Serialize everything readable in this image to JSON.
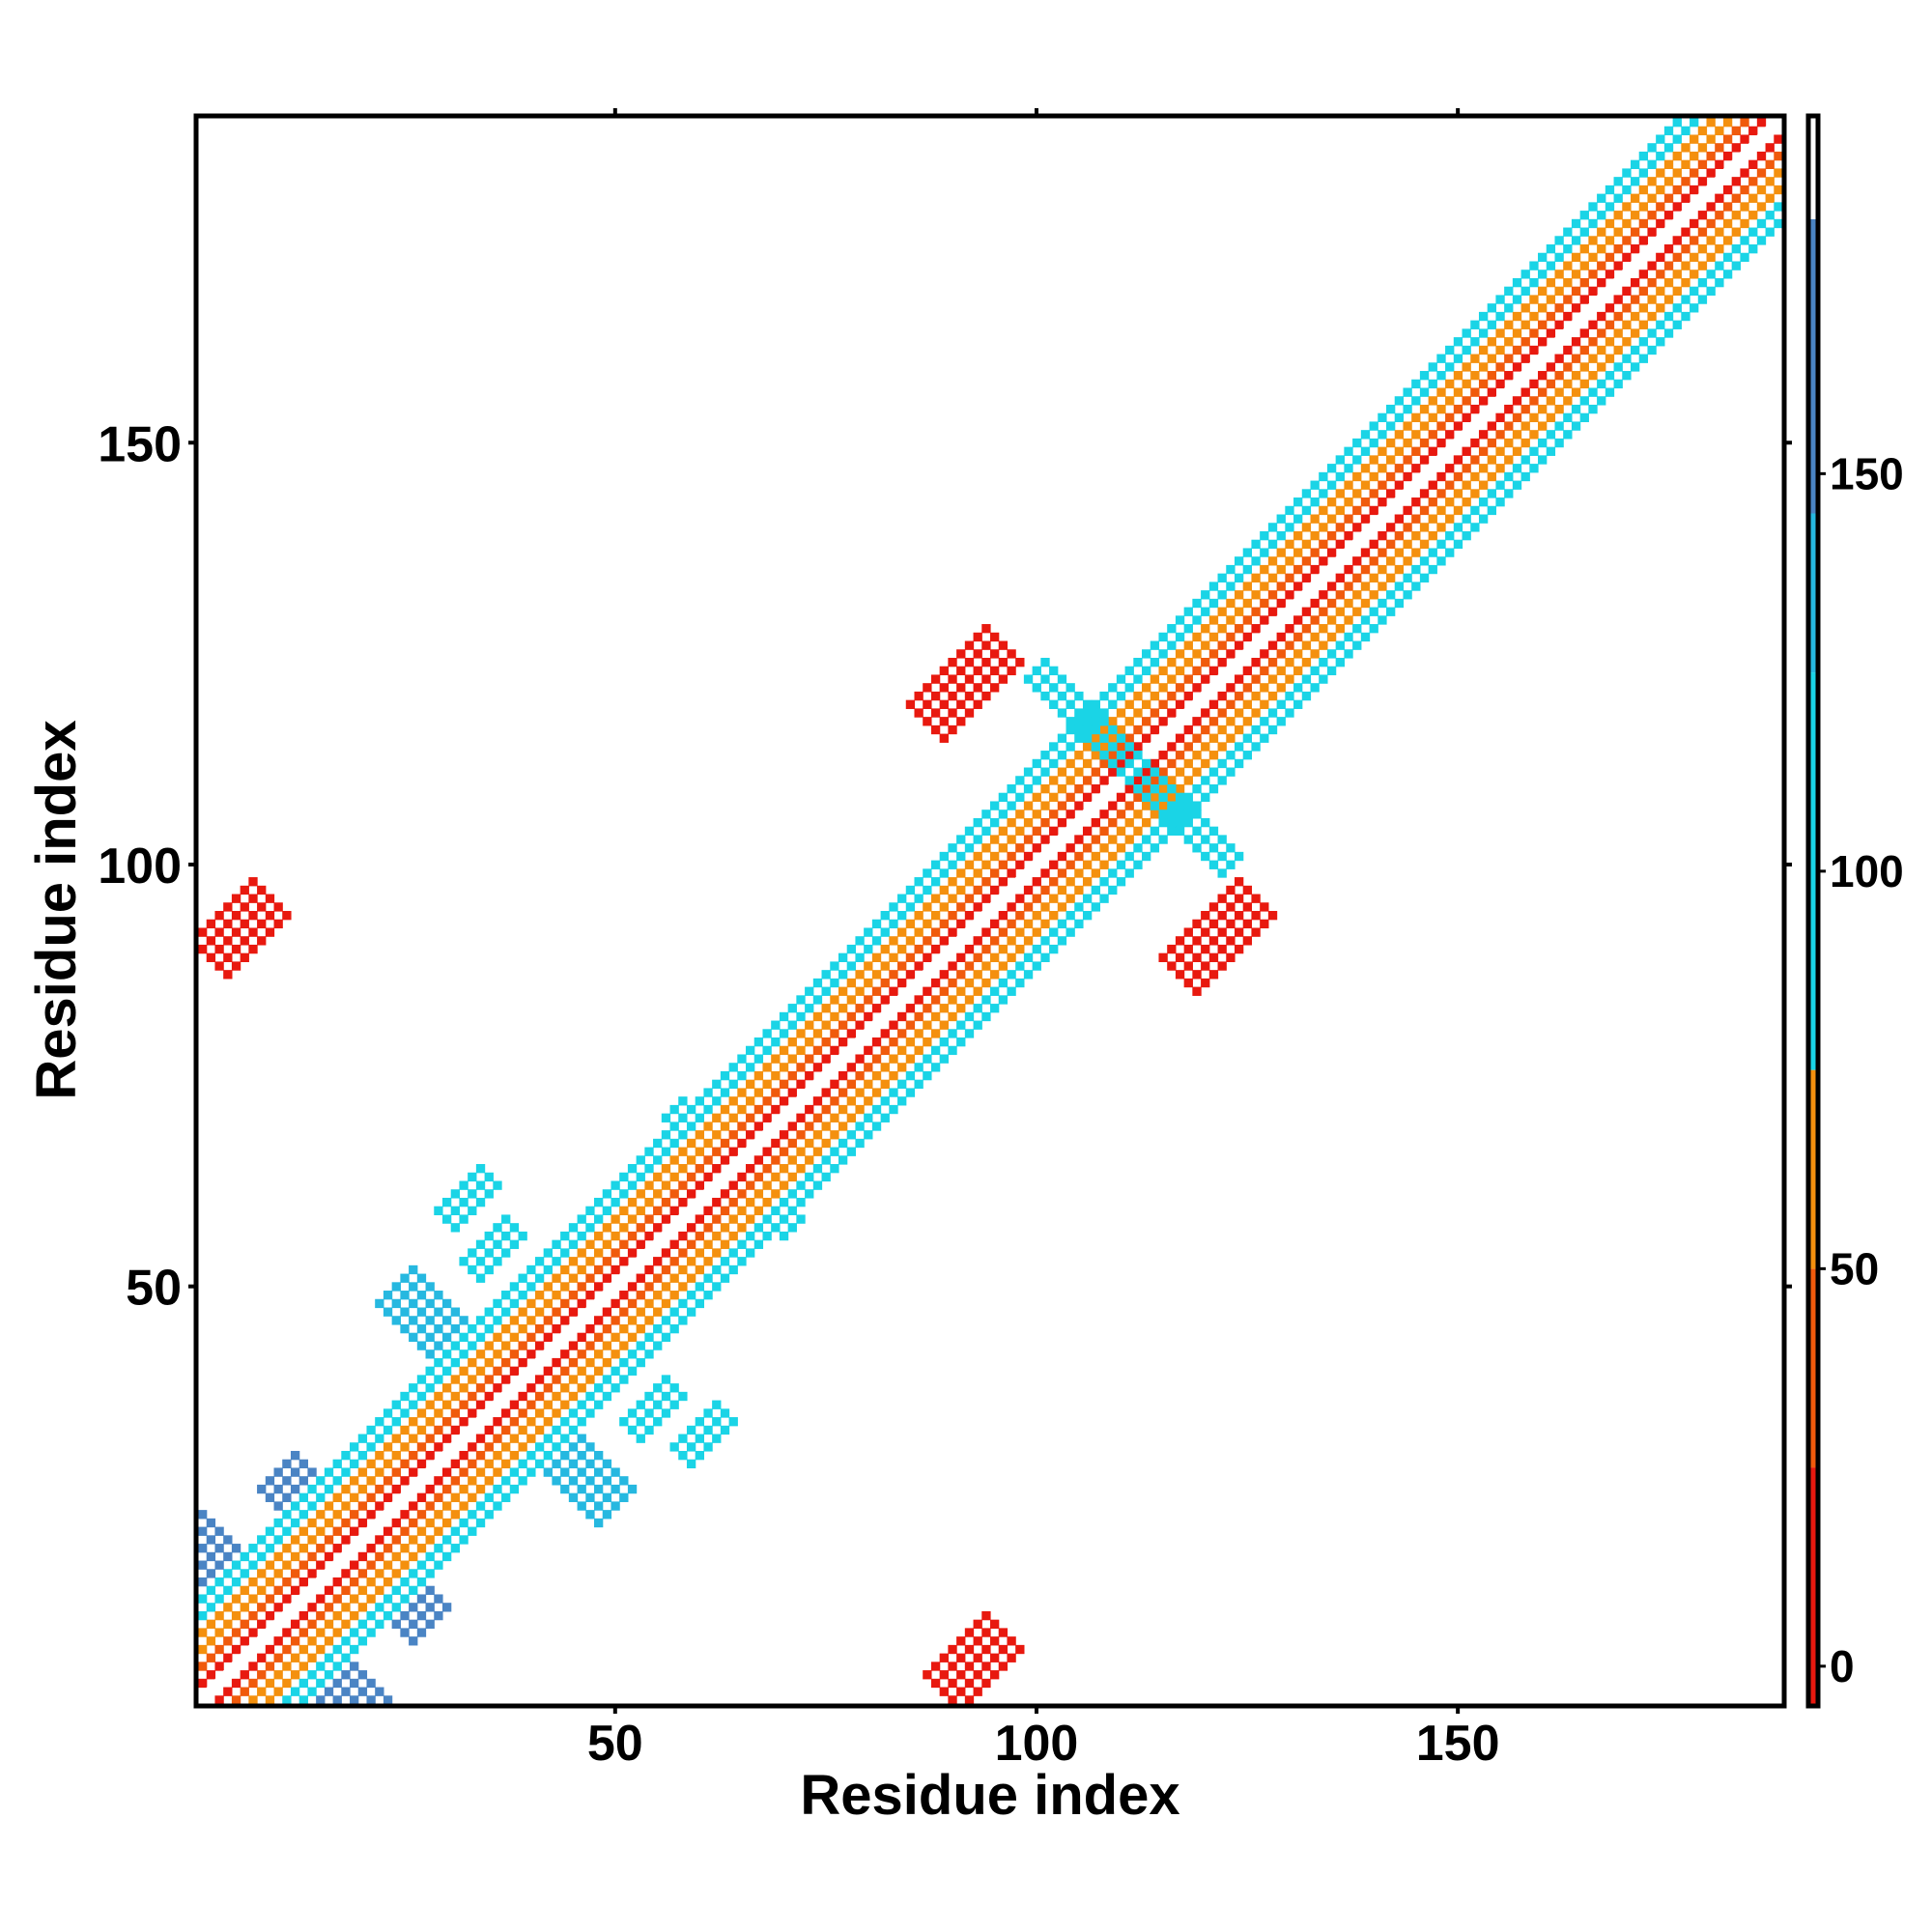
{
  "chart_data": {
    "type": "heatmap",
    "title": "",
    "xlabel": "Residue index",
    "ylabel": "Residue index",
    "xlim": [
      1,
      188
    ],
    "ylim": [
      1,
      188
    ],
    "x_ticks": [
      50,
      100,
      150
    ],
    "y_ticks": [
      50,
      100,
      150
    ],
    "grid": false,
    "legend": "colorbar-right",
    "colorbar": {
      "ticks": [
        0,
        50,
        100,
        150
      ],
      "range": [
        -5,
        195
      ],
      "bands": [
        {
          "from": -5,
          "to": 25,
          "color": "#e8190f"
        },
        {
          "from": 25,
          "to": 50,
          "color": "#f05a0c"
        },
        {
          "from": 50,
          "to": 75,
          "color": "#f4900e"
        },
        {
          "from": 75,
          "to": 125,
          "color": "#1ad4e6"
        },
        {
          "from": 125,
          "to": 145,
          "color": "#26b8e0"
        },
        {
          "from": 145,
          "to": 182,
          "color": "#4a84c4"
        },
        {
          "from": 182,
          "to": 195,
          "color": "#ffffff"
        }
      ]
    },
    "contact_regions": [
      {
        "name": "diagonal",
        "start_i": 1,
        "start_j": 1,
        "length": 188,
        "dir": "parallel",
        "halfwidth": 6,
        "value": 40
      },
      {
        "name": "x-cross-1a",
        "start_i": 2,
        "start_j": 18,
        "length": 26,
        "dir": "anti",
        "halfwidth": 1.5,
        "value": 150
      },
      {
        "name": "x-cross-1b",
        "start_i": 10,
        "start_j": 28,
        "length": 18,
        "dir": "anti",
        "halfwidth": 1.5,
        "value": 150
      },
      {
        "name": "x-cross-2",
        "start_i": 27,
        "start_j": 47,
        "length": 24,
        "dir": "anti",
        "halfwidth": 1.5,
        "value": 140
      },
      {
        "name": "x-cross-3",
        "start_i": 57,
        "start_j": 71,
        "length": 14,
        "dir": "anti",
        "halfwidth": 1.2,
        "value": 110
      },
      {
        "name": "x-cross-4",
        "start_i": 100,
        "start_j": 123,
        "length": 20,
        "dir": "anti",
        "halfwidth": 1.0,
        "value": 110
      },
      {
        "name": "x-cross-5",
        "start_i": 152,
        "start_j": 162,
        "length": 10,
        "dir": "anti",
        "halfwidth": 1.0,
        "value": 120
      },
      {
        "name": "sheet-a",
        "start_i": 2,
        "start_j": 89,
        "length": 8,
        "dir": "parallel",
        "halfwidth": 1.6,
        "value": 20
      },
      {
        "name": "sheet-b",
        "start_i": 87,
        "start_j": 117,
        "length": 10,
        "dir": "parallel",
        "halfwidth": 1.6,
        "value": 15
      },
      {
        "name": "sheet-c",
        "start_i": 117,
        "start_j": 87,
        "length": 10,
        "dir": "parallel",
        "halfwidth": 1.6,
        "value": 15
      },
      {
        "name": "sheet-d",
        "start_i": 30,
        "start_j": 58,
        "length": 6,
        "dir": "parallel",
        "halfwidth": 1.2,
        "value": 110
      },
      {
        "name": "sheet-e",
        "start_i": 52,
        "start_j": 33,
        "length": 6,
        "dir": "parallel",
        "halfwidth": 1.2,
        "value": 110
      }
    ]
  }
}
